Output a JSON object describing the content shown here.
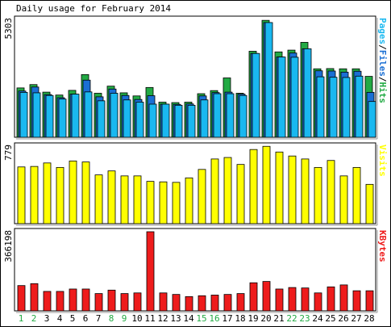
{
  "chart_data": {
    "type": "bar",
    "title": "Daily usage for February 2014",
    "categories": [
      "1",
      "2",
      "3",
      "4",
      "5",
      "6",
      "7",
      "8",
      "9",
      "10",
      "11",
      "12",
      "13",
      "14",
      "15",
      "16",
      "17",
      "18",
      "19",
      "20",
      "21",
      "22",
      "23",
      "24",
      "25",
      "26",
      "27",
      "28"
    ],
    "weekend_days": [
      "1",
      "2",
      "8",
      "9",
      "15",
      "16",
      "22",
      "23"
    ],
    "colors": {
      "hits": "#22aa44",
      "files": "#1a6fd4",
      "pages": "#1ab8f0",
      "visits": "#ffff00",
      "kbytes": "#ee1c1c",
      "weekday_label": "#000000",
      "weekend_label": "#22aa44"
    },
    "panels": [
      {
        "id": "top",
        "max_label": "5303",
        "ylim": [
          0,
          5303
        ],
        "legend": [
          {
            "text": "Pages",
            "color": "#1ab8f0"
          },
          {
            "text": "/",
            "color": "#000000"
          },
          {
            "text": "Files",
            "color": "#1a6fd4"
          },
          {
            "text": "/",
            "color": "#000000"
          },
          {
            "text": "Hits",
            "color": "#22aa44"
          }
        ],
        "series": [
          {
            "name": "Hits",
            "values": [
              2220,
              2370,
              2030,
              1900,
              2110,
              2820,
              1980,
              2300,
              2000,
              1860,
              2240,
              1580,
              1560,
              1580,
              1960,
              2100,
              2670,
              1980,
              3870,
              5260,
              3840,
              3920,
              4270,
              3080,
              3090,
              3080,
              3080,
              2740
            ]
          },
          {
            "name": "Files",
            "values": [
              2080,
              2260,
              1920,
              1780,
              1940,
              2570,
              1820,
              2170,
              1880,
              1700,
              1870,
              1490,
              1480,
              1500,
              1860,
              2010,
              2030,
              1940,
              3770,
              5160,
              3610,
              3790,
              3980,
              2990,
              2980,
              2930,
              2970,
              2020
            ]
          },
          {
            "name": "Pages",
            "values": [
              2020,
              2000,
              1880,
              1720,
              1940,
              2040,
              1640,
              1980,
              1680,
              1580,
              1490,
              1490,
              1440,
              1440,
              1680,
              1960,
              1960,
              1880,
              3770,
              5160,
              3610,
              3600,
              3980,
              2720,
              2700,
              2690,
              2750,
              1610
            ]
          }
        ]
      },
      {
        "id": "middle",
        "max_label": "779",
        "ylim": [
          0,
          779
        ],
        "legend": [
          {
            "text": "Visits",
            "color": "#ffff00"
          }
        ],
        "series": [
          {
            "name": "Visits",
            "values": [
              570,
              575,
              610,
              565,
              630,
              620,
              490,
              530,
              480,
              480,
              425,
              420,
              415,
              460,
              545,
              650,
              665,
              595,
              745,
              777,
              720,
              680,
              650,
              565,
              635,
              480,
              565,
              395
            ]
          }
        ]
      },
      {
        "id": "bottom",
        "max_label": "366198",
        "ylim": [
          0,
          366198
        ],
        "legend": [
          {
            "text": "KBytes",
            "color": "#ee1c1c"
          }
        ],
        "series": [
          {
            "name": "KBytes",
            "values": [
              117000,
              126000,
              90000,
              90000,
              101000,
              101000,
              80000,
              96000,
              80000,
              83000,
              366198,
              83000,
              76000,
              66000,
              70000,
              73000,
              76000,
              80000,
              130000,
              136000,
              101000,
              108000,
              106000,
              83000,
              111000,
              120000,
              93000,
              93000
            ]
          }
        ]
      }
    ]
  }
}
